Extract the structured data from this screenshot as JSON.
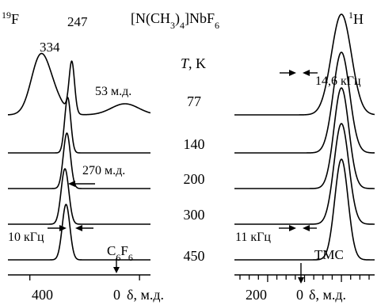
{
  "chart_data": {
    "type": "line",
    "title": "[N(CH3)4]NbF6",
    "temperature_header": "T, K",
    "temperatures": [
      "77",
      "140",
      "200",
      "300",
      "450"
    ],
    "panels": [
      {
        "nucleus": "19F",
        "nucleus_mass": "19",
        "nucleus_symbol": "F",
        "xlabel": "δ, м.д.",
        "x_reversed": true,
        "x_tick_labels": [
          "400",
          "0"
        ],
        "x_ticks": [
          400,
          0
        ],
        "xlim": [
          480,
          -40
        ],
        "spectra": [
          {
            "temperature": "77",
            "peaks": [
              {
                "center": 367,
                "height": 0.7,
                "width": 32
              },
              {
                "center": 247,
                "height": 0.92,
                "width": 10
              },
              {
                "center": 334,
                "height": 0.52,
                "width": 40
              },
              {
                "center": 53,
                "height": 0.2,
                "width": 50
              }
            ]
          },
          {
            "temperature": "140",
            "peaks": [
              {
                "center": 262,
                "height": 1.0,
                "width": 11
              }
            ]
          },
          {
            "temperature": "200",
            "peaks": [
              {
                "center": 265,
                "height": 1.0,
                "width": 13
              }
            ]
          },
          {
            "temperature": "300",
            "peaks": [
              {
                "center": 272,
                "height": 1.0,
                "width": 14
              }
            ]
          },
          {
            "temperature": "450",
            "peaks": [
              {
                "center": 268,
                "height": 1.0,
                "width": 14
              }
            ]
          }
        ],
        "annotations": {
          "peak_a": "334",
          "peak_b": "247",
          "shoulder": "53 м.д.",
          "shift": "270 м.д.",
          "linewidth": "10 кГц",
          "reference_base": "C",
          "reference_sub1": "6",
          "reference_mid": "F",
          "reference_sub2": "6"
        }
      },
      {
        "nucleus": "1H",
        "nucleus_mass": "1",
        "nucleus_symbol": "H",
        "xlabel": "δ, м.д.",
        "x_reversed": true,
        "x_tick_labels": [
          "200",
          "0"
        ],
        "x_ticks": [
          200,
          0
        ],
        "xlim": [
          290,
          -90
        ],
        "spectra": [
          {
            "temperature": "77",
            "peaks": [
              {
                "center": 0,
                "height": 1.0,
                "width": 27
              }
            ]
          },
          {
            "temperature": "140",
            "peaks": [
              {
                "center": 0,
                "height": 1.0,
                "width": 22
              }
            ]
          },
          {
            "temperature": "200",
            "peaks": [
              {
                "center": 0,
                "height": 1.0,
                "width": 20
              }
            ]
          },
          {
            "temperature": "300",
            "peaks": [
              {
                "center": 0,
                "height": 1.0,
                "width": 20
              }
            ]
          },
          {
            "temperature": "450",
            "peaks": [
              {
                "center": 0,
                "height": 1.0,
                "width": 18
              }
            ]
          }
        ],
        "annotations": {
          "linewidth_77": "14,6 кГц",
          "linewidth_450": "11 кГц",
          "reference": "TMC"
        }
      }
    ]
  }
}
